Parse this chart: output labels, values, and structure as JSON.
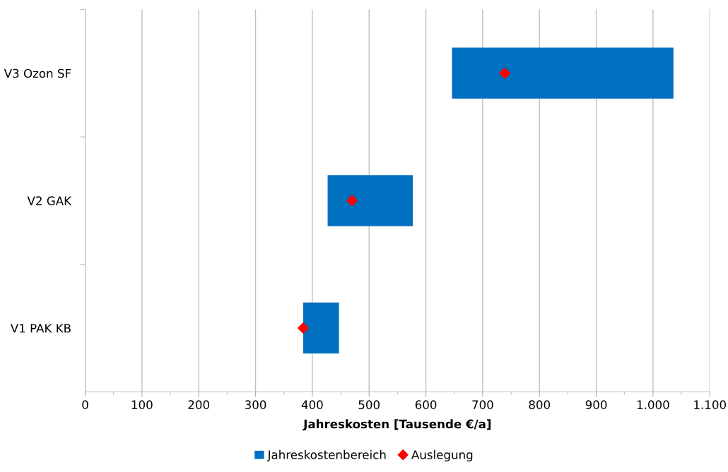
{
  "chart_data": {
    "type": "bar",
    "orientation": "horizontal",
    "xlabel": "Jahreskosten [Tausende €/a]",
    "categories": [
      "V3 Ozon SF",
      "V2 GAK",
      "V1 PAK KB"
    ],
    "series": [
      {
        "name": "Jahreskostenbereich",
        "color": "#0070c0",
        "base": [
          646,
          427,
          384
        ],
        "values": [
          390,
          150,
          63
        ]
      },
      {
        "name": "Auslegung",
        "type": "scatter",
        "color": "#ff0000",
        "marker": "diamond",
        "values": [
          739,
          470,
          384
        ]
      }
    ],
    "xlim": [
      0,
      1100
    ],
    "xticks": [
      0,
      100,
      200,
      300,
      400,
      500,
      600,
      700,
      800,
      900,
      {
        "value": 1000,
        "label": "1.000"
      },
      {
        "value": 1100,
        "label": "1.100"
      }
    ],
    "grid": "x",
    "legend": "bottom"
  }
}
